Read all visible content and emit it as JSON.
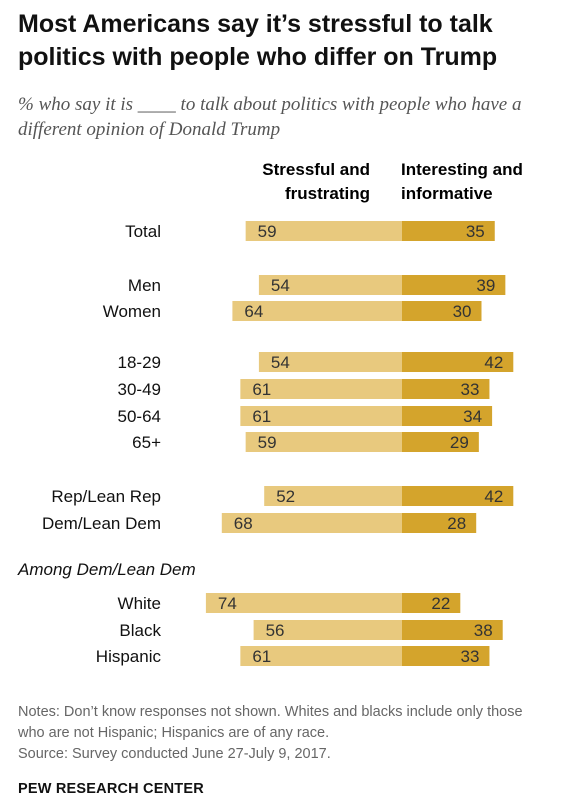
{
  "title": "Most Americans say it’s stressful to talk politics with people who differ on Trump",
  "subtitle": "% who say it is ____ to talk about politics with people who have a different opinion of Donald Trump",
  "colors": {
    "stressful": "#e8c97e",
    "interesting": "#d4a42c"
  },
  "chart_data": {
    "type": "bar",
    "title": "Most Americans say it’s stressful to talk politics with people who differ on Trump",
    "subtitle": "% who say it is ____ to talk about politics with people who have a different opinion of Donald Trump",
    "categories": [
      "Total",
      "Men",
      "Women",
      "18-29",
      "30-49",
      "50-64",
      "65+",
      "Rep/Lean Rep",
      "Dem/Lean Dem",
      "White",
      "Black",
      "Hispanic"
    ],
    "groups": [
      {
        "label": "",
        "categories": [
          "Total"
        ]
      },
      {
        "label": "",
        "categories": [
          "Men",
          "Women"
        ]
      },
      {
        "label": "",
        "categories": [
          "18-29",
          "30-49",
          "50-64",
          "65+"
        ]
      },
      {
        "label": "",
        "categories": [
          "Rep/Lean Rep",
          "Dem/Lean Dem"
        ]
      },
      {
        "label": "Among Dem/Lean Dem",
        "categories": [
          "White",
          "Black",
          "Hispanic"
        ]
      }
    ],
    "series": [
      {
        "name": "Stressful and frustrating",
        "values": [
          59,
          54,
          64,
          54,
          61,
          61,
          59,
          52,
          68,
          74,
          56,
          61
        ]
      },
      {
        "name": "Interesting and informative",
        "values": [
          35,
          39,
          30,
          42,
          33,
          34,
          29,
          42,
          28,
          22,
          38,
          33
        ]
      }
    ]
  },
  "section_label": "Among Dem/Lean Dem",
  "notes": "Notes: Don’t know responses not shown. Whites and blacks include only those who are not Hispanic; Hispanics are of any race.",
  "source": "Source: Survey conducted June 27-July 9, 2017.",
  "brand": "PEW RESEARCH CENTER"
}
